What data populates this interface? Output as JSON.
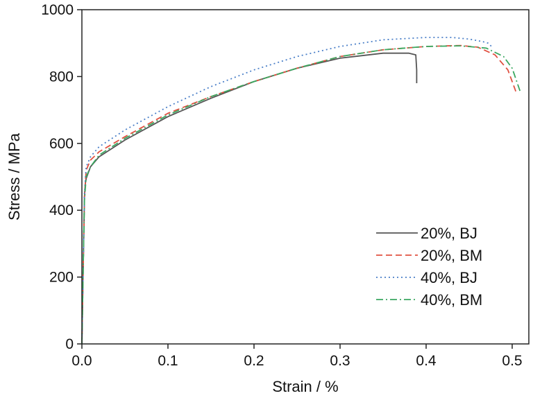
{
  "chart_data": {
    "type": "line",
    "title": "",
    "xlabel": "Strain / %",
    "ylabel": "Stress / MPa",
    "xlim": [
      0.0,
      0.52
    ],
    "ylim": [
      0,
      1000
    ],
    "xticks": [
      0.0,
      0.1,
      0.2,
      0.3,
      0.4,
      0.5
    ],
    "xtick_labels": [
      "0.0",
      "0.1",
      "0.2",
      "0.3",
      "0.4",
      "0.5"
    ],
    "yticks": [
      0,
      200,
      400,
      600,
      800,
      1000
    ],
    "ytick_labels": [
      "0",
      "200",
      "400",
      "600",
      "800",
      "1000"
    ],
    "grid": false,
    "legend_position": "bottom-right",
    "series": [
      {
        "name": "20%, BJ",
        "color": "#555555",
        "style": "solid",
        "x": [
          0.0,
          0.002,
          0.003,
          0.004,
          0.005,
          0.01,
          0.02,
          0.05,
          0.1,
          0.15,
          0.2,
          0.25,
          0.3,
          0.35,
          0.38,
          0.388,
          0.389,
          0.389
        ],
        "y": [
          0,
          300,
          440,
          480,
          495,
          530,
          560,
          610,
          680,
          735,
          785,
          825,
          855,
          870,
          870,
          865,
          820,
          780
        ]
      },
      {
        "name": "20%, BM",
        "color": "#e05040",
        "style": "dashed",
        "x": [
          0.0,
          0.002,
          0.003,
          0.005,
          0.01,
          0.02,
          0.05,
          0.1,
          0.15,
          0.2,
          0.25,
          0.3,
          0.35,
          0.4,
          0.44,
          0.46,
          0.48,
          0.495,
          0.505
        ],
        "y": [
          0,
          300,
          440,
          520,
          550,
          575,
          620,
          690,
          740,
          785,
          825,
          860,
          880,
          890,
          893,
          888,
          865,
          820,
          750
        ]
      },
      {
        "name": "40%, BJ",
        "color": "#4a7fc8",
        "style": "dotted",
        "x": [
          0.0,
          0.002,
          0.003,
          0.005,
          0.01,
          0.02,
          0.05,
          0.1,
          0.15,
          0.2,
          0.25,
          0.3,
          0.35,
          0.4,
          0.43,
          0.45,
          0.465,
          0.472,
          0.476
        ],
        "y": [
          0,
          300,
          450,
          530,
          560,
          590,
          640,
          710,
          770,
          820,
          860,
          890,
          910,
          917,
          917,
          912,
          905,
          900,
          890
        ]
      },
      {
        "name": "40%, BM",
        "color": "#3aa860",
        "style": "dashdot",
        "x": [
          0.0,
          0.002,
          0.003,
          0.005,
          0.01,
          0.02,
          0.05,
          0.1,
          0.15,
          0.2,
          0.25,
          0.3,
          0.35,
          0.4,
          0.44,
          0.47,
          0.49,
          0.5,
          0.51
        ],
        "y": [
          0,
          300,
          430,
          500,
          530,
          565,
          615,
          685,
          740,
          785,
          825,
          860,
          880,
          890,
          892,
          885,
          860,
          825,
          750
        ]
      }
    ]
  }
}
